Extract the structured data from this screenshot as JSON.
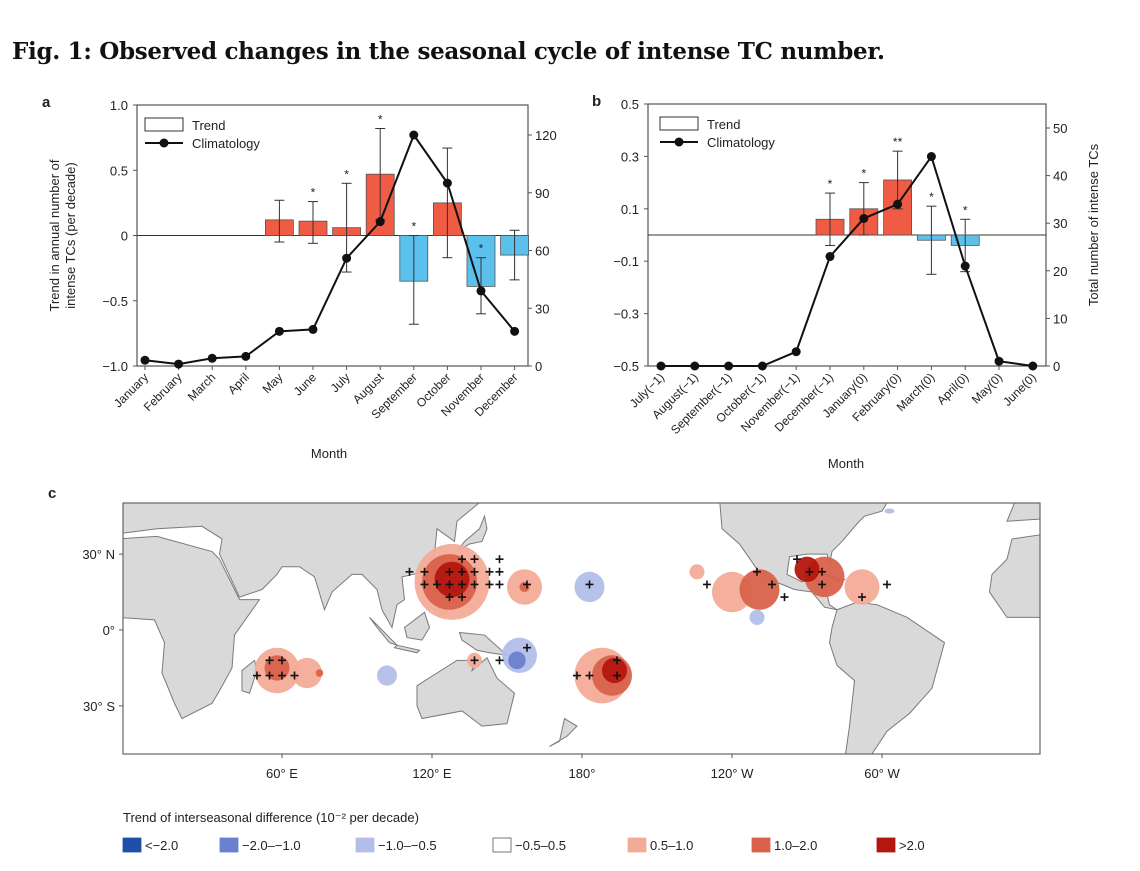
{
  "figure": {
    "title": "Fig. 1: Observed changes in the seasonal cycle of intense TC number."
  },
  "colors": {
    "positive_bar": "#ef5b43",
    "negative_bar": "#5cc0ec",
    "land": "#d9d9d9",
    "coast": "#7a7a7a"
  },
  "chart_data": [
    {
      "panel": "a",
      "type": "bar+line",
      "xlabel": "Month",
      "ylabel_left": [
        "Trend in annual number of",
        "intense TCs (per decade)"
      ],
      "ylabel_right": "",
      "categories": [
        "January",
        "February",
        "March",
        "April",
        "May",
        "June",
        "July",
        "August",
        "September",
        "October",
        "November",
        "December"
      ],
      "ylim_left": [
        -1.0,
        1.0
      ],
      "yticks_left": [
        "1.0",
        "0.5",
        "0",
        "−0.5",
        "−1.0"
      ],
      "ytick_values_left": [
        1.0,
        0.5,
        0,
        -0.5,
        -1.0
      ],
      "ylim_right": [
        0,
        120
      ],
      "yticks_right": [
        "120",
        "90",
        "60",
        "30",
        "0"
      ],
      "ytick_values_right": [
        120,
        90,
        60,
        30,
        0
      ],
      "legend": {
        "trend": "Trend",
        "climatology": "Climatology",
        "placement": "top-left"
      },
      "series": [
        {
          "name": "Trend",
          "type": "bar",
          "values": [
            null,
            null,
            null,
            null,
            0.12,
            0.11,
            0.06,
            0.47,
            -0.35,
            0.25,
            -0.39,
            -0.15
          ],
          "error_low": [
            null,
            null,
            null,
            null,
            -0.05,
            -0.06,
            -0.28,
            0.12,
            -0.68,
            -0.17,
            -0.6,
            -0.34
          ],
          "error_high": [
            null,
            null,
            null,
            null,
            0.27,
            0.26,
            0.4,
            0.82,
            0,
            0.67,
            -0.17,
            0.04
          ],
          "significance": [
            "",
            "",
            "",
            "",
            "",
            "*",
            "*",
            "*",
            "*",
            "",
            "*",
            ""
          ]
        },
        {
          "name": "Climatology",
          "type": "line",
          "axis": "right",
          "values": [
            3,
            1,
            4,
            5,
            18,
            19,
            56,
            75,
            120,
            95,
            39,
            18
          ]
        }
      ]
    },
    {
      "panel": "b",
      "type": "bar+line",
      "xlabel": "Month",
      "ylabel_left": [],
      "ylabel_right": "Total number of intense TCs",
      "categories": [
        "July(−1)",
        "August(−1)",
        "September(−1)",
        "October(−1)",
        "November(−1)",
        "December(−1)",
        "January(0)",
        "February(0)",
        "March(0)",
        "April(0)",
        "May(0)",
        "June(0)"
      ],
      "ylim_left": [
        -0.5,
        0.5
      ],
      "yticks_left": [
        "0.5",
        "0.3",
        "0.1",
        "−0.1",
        "−0.3",
        "−0.5"
      ],
      "ytick_values_left": [
        0.5,
        0.3,
        0.1,
        -0.1,
        -0.3,
        -0.5
      ],
      "ylim_right": [
        0,
        50
      ],
      "yticks_right": [
        "50",
        "40",
        "30",
        "20",
        "10",
        "0"
      ],
      "ytick_values_right": [
        50,
        40,
        30,
        20,
        10,
        0
      ],
      "legend": {
        "trend": "Trend",
        "climatology": "Climatology",
        "placement": "top-left"
      },
      "series": [
        {
          "name": "Trend",
          "type": "bar",
          "values": [
            null,
            null,
            null,
            null,
            null,
            0.06,
            0.1,
            0.21,
            -0.02,
            -0.04,
            null,
            null
          ],
          "error_low": [
            null,
            null,
            null,
            null,
            null,
            -0.04,
            0.0,
            0.1,
            -0.15,
            -0.14,
            null,
            null
          ],
          "error_high": [
            null,
            null,
            null,
            null,
            null,
            0.16,
            0.2,
            0.32,
            0.11,
            0.06,
            null,
            null
          ],
          "significance": [
            "",
            "",
            "",
            "",
            "",
            "*",
            "*",
            "**",
            "*",
            "*",
            "",
            ""
          ]
        },
        {
          "name": "Climatology",
          "type": "line",
          "axis": "right",
          "values": [
            0,
            0,
            0,
            0,
            3,
            23,
            31,
            34,
            44,
            21,
            1,
            0
          ]
        }
      ]
    },
    {
      "panel": "c",
      "type": "map",
      "lat_ticks": [
        {
          "value": 30,
          "label": "30° N"
        },
        {
          "value": 0,
          "label": "0°"
        },
        {
          "value": -30,
          "label": "30° S"
        }
      ],
      "lon_ticks": [
        {
          "value": 60,
          "label": "60° E"
        },
        {
          "value": 120,
          "label": "120° E"
        },
        {
          "value": 180,
          "label": "180°"
        },
        {
          "value": 240,
          "label": "120° W"
        },
        {
          "value": 300,
          "label": "60° W"
        }
      ],
      "legend_title": "Trend of interseasonal difference (10⁻² per decade)",
      "categories": [
        {
          "label": "<−2.0",
          "color": "#1f4fa8"
        },
        {
          "label": "−2.0–−1.0",
          "color": "#6b80cf"
        },
        {
          "label": "−1.0–−0.5",
          "color": "#b3bfea"
        },
        {
          "label": "−0.5–0.5",
          "color": "#ffffff"
        },
        {
          "label": "0.5–1.0",
          "color": "#f3ab98"
        },
        {
          "label": "1.0–2.0",
          "color": "#d9624b"
        },
        {
          "label": ">2.0",
          "color": "#b3170f"
        }
      ],
      "regions": [
        {
          "lon": 128,
          "lat": 19,
          "r": 15,
          "cat": 4
        },
        {
          "lon": 127,
          "lat": 19,
          "r": 11,
          "cat": 5
        },
        {
          "lon": 128,
          "lat": 20,
          "r": 7,
          "cat": 6
        },
        {
          "lon": 157,
          "lat": 17,
          "r": 7,
          "cat": 4
        },
        {
          "lon": 157,
          "lat": 17,
          "r": 2,
          "cat": 5
        },
        {
          "lon": 183,
          "lat": 17,
          "r": 6,
          "cat": 2
        },
        {
          "lon": 58,
          "lat": -16,
          "r": 9,
          "cat": 4
        },
        {
          "lon": 70,
          "lat": -17,
          "r": 6,
          "cat": 4
        },
        {
          "lon": 58,
          "lat": -15,
          "r": 5,
          "cat": 5
        },
        {
          "lon": 75,
          "lat": -17,
          "r": 1.5,
          "cat": 5
        },
        {
          "lon": 102,
          "lat": -18,
          "r": 4,
          "cat": 2
        },
        {
          "lon": 137,
          "lat": -12,
          "r": 3,
          "cat": 4
        },
        {
          "lon": 155,
          "lat": -10,
          "r": 7,
          "cat": 2
        },
        {
          "lon": 154,
          "lat": -12,
          "r": 3.5,
          "cat": 1
        },
        {
          "lon": 188,
          "lat": -18,
          "r": 11,
          "cat": 4
        },
        {
          "lon": 192,
          "lat": -18,
          "r": 8,
          "cat": 5
        },
        {
          "lon": 193,
          "lat": -16,
          "r": 5,
          "cat": 6
        },
        {
          "lon": 226,
          "lat": 23,
          "r": 3,
          "cat": 4
        },
        {
          "lon": 240,
          "lat": 15,
          "r": 8,
          "cat": 4
        },
        {
          "lon": 251,
          "lat": 16,
          "r": 8,
          "cat": 5
        },
        {
          "lon": 250,
          "lat": 5,
          "r": 3,
          "cat": 2
        },
        {
          "lon": 277,
          "lat": 21,
          "r": 8,
          "cat": 5
        },
        {
          "lon": 270,
          "lat": 24,
          "r": 5,
          "cat": 6
        },
        {
          "lon": 292,
          "lat": 17,
          "r": 7,
          "cat": 4
        },
        {
          "lon": 303,
          "lat": 47,
          "r": 2,
          "cat": 2
        }
      ],
      "significant_points": [
        [
          132,
          28
        ],
        [
          137,
          28
        ],
        [
          147,
          28
        ],
        [
          111,
          23
        ],
        [
          117,
          23
        ],
        [
          127,
          23
        ],
        [
          132,
          23
        ],
        [
          137,
          23
        ],
        [
          143,
          23
        ],
        [
          147,
          23
        ],
        [
          117,
          18
        ],
        [
          122,
          18
        ],
        [
          127,
          18
        ],
        [
          132,
          18
        ],
        [
          137,
          18
        ],
        [
          143,
          18
        ],
        [
          147,
          18
        ],
        [
          158,
          18
        ],
        [
          183,
          18
        ],
        [
          127,
          13
        ],
        [
          132,
          13
        ],
        [
          55,
          -12
        ],
        [
          60,
          -12
        ],
        [
          50,
          -18
        ],
        [
          55,
          -18
        ],
        [
          60,
          -18
        ],
        [
          65,
          -18
        ],
        [
          137,
          -12
        ],
        [
          147,
          -12
        ],
        [
          158,
          -7
        ],
        [
          178,
          -18
        ],
        [
          183,
          -18
        ],
        [
          194,
          -12
        ],
        [
          194,
          -18
        ],
        [
          230,
          18
        ],
        [
          250,
          23
        ],
        [
          256,
          18
        ],
        [
          261,
          13
        ],
        [
          266,
          28
        ],
        [
          271,
          23
        ],
        [
          276,
          23
        ],
        [
          276,
          18
        ],
        [
          292,
          13
        ],
        [
          302,
          18
        ]
      ]
    }
  ]
}
